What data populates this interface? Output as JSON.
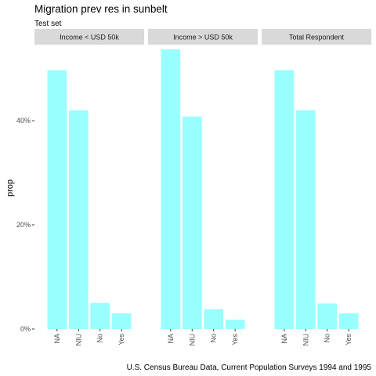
{
  "chart_data": {
    "type": "bar",
    "title": "Migration prev res in sunbelt",
    "subtitle": "Test set",
    "caption": "U.S. Census Bureau Data, Current Population Surveys 1994 and 1995",
    "xlabel": "",
    "ylabel": "prop",
    "ylim": [
      0,
      0.54
    ],
    "y_ticks": [
      0,
      0.2,
      0.4
    ],
    "y_tick_labels": [
      "0%",
      "20%",
      "40%"
    ],
    "categories": [
      "NA",
      "NIU",
      "No",
      "Yes"
    ],
    "bar_color": "#99FFFF",
    "grid": false,
    "facets": [
      {
        "label": "Income < USD 50k",
        "values": [
          0.497,
          0.42,
          0.05,
          0.03
        ]
      },
      {
        "label": "Income > USD 50k",
        "values": [
          0.537,
          0.408,
          0.038,
          0.018
        ]
      },
      {
        "label": "Total Respondent",
        "values": [
          0.497,
          0.42,
          0.049,
          0.03
        ]
      }
    ]
  }
}
